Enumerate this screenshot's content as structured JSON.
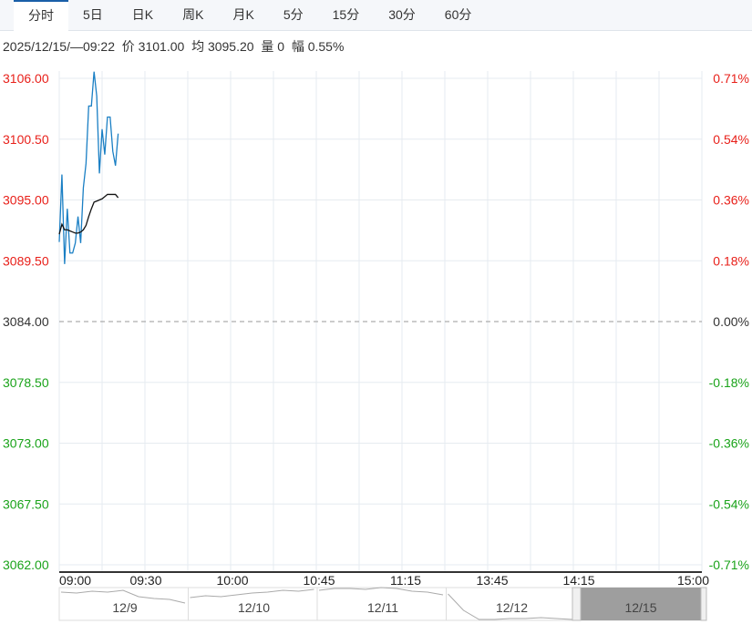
{
  "tabs": [
    {
      "label": "分时",
      "active": true
    },
    {
      "label": "5日"
    },
    {
      "label": "日K"
    },
    {
      "label": "周K"
    },
    {
      "label": "月K"
    },
    {
      "label": "5分"
    },
    {
      "label": "15分"
    },
    {
      "label": "30分"
    },
    {
      "label": "60分"
    }
  ],
  "info": {
    "datetime": "2025/12/15/—09:22",
    "price_label": "价",
    "price": "3101.00",
    "avg_label": "均",
    "avg": "3095.20",
    "vol_label": "量",
    "vol": "0",
    "amp_label": "幅",
    "amp": "0.55%"
  },
  "colors": {
    "up": "#e8201a",
    "down": "#1aa31a",
    "price_line": "#1a7fc4",
    "avg_line": "#111111"
  },
  "chart_data": {
    "type": "line",
    "prev_close": 3084.0,
    "ylim": [
      3062.0,
      3106.0
    ],
    "y_ticks": [
      "3106.00",
      "3100.50",
      "3095.00",
      "3089.50",
      "3084.00",
      "3078.50",
      "3073.00",
      "3067.50",
      "3062.00"
    ],
    "pct_ticks": [
      "0.71%",
      "0.54%",
      "0.36%",
      "0.18%",
      "0.00%",
      "-0.18%",
      "-0.36%",
      "-0.54%",
      "-0.71%"
    ],
    "x_ticks": [
      "09:00",
      "09:30",
      "10:00",
      "10:45",
      "11:15",
      "13:45",
      "14:15",
      "15:00"
    ],
    "x_start": "09:00",
    "x_minutes_total": 240,
    "series": [
      {
        "key": "price",
        "values": [
          3091.2,
          3097.3,
          3089.2,
          3094.2,
          3090.2,
          3090.2,
          3091.1,
          3093.5,
          3091.1,
          3096.1,
          3098.3,
          3103.5,
          3103.5,
          3106.6,
          3104.4,
          3097.4,
          3101.4,
          3099.1,
          3102.5,
          3102.5,
          3099.4,
          3098.1,
          3101.0
        ]
      },
      {
        "key": "avg",
        "values": [
          3091.9,
          3092.8,
          3092.3,
          3092.3,
          3092.2,
          3092.1,
          3092.0,
          3092.0,
          3092.1,
          3092.3,
          3092.7,
          3093.5,
          3094.2,
          3094.8,
          3094.9,
          3095.0,
          3095.1,
          3095.3,
          3095.5,
          3095.5,
          3095.5,
          3095.5,
          3095.2
        ]
      }
    ],
    "navigator": {
      "dates": [
        "12/9",
        "12/10",
        "12/11",
        "12/12",
        "12/15"
      ],
      "selected": "12/15"
    }
  }
}
